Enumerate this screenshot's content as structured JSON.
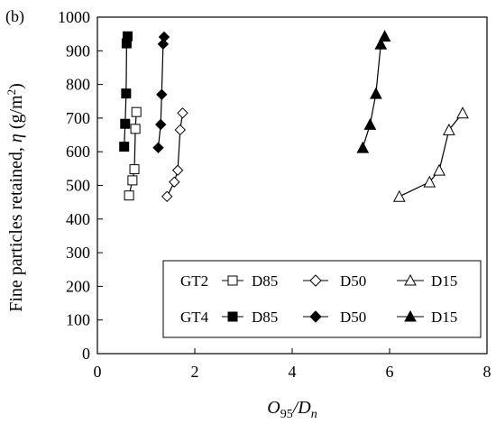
{
  "chart_data": {
    "type": "scatter",
    "panel_label": "(b)",
    "xlabel": {
      "base": "O",
      "sub": "95",
      "sep": "/D",
      "sub2": "n"
    },
    "ylabel": {
      "prefix": "Fine particles retained, ",
      "symbol": "η",
      "unit_open": " (g/m",
      "sup": "2",
      "unit_close": ")"
    },
    "xlim": [
      0,
      8
    ],
    "ylim": [
      0,
      1000
    ],
    "xticks": [
      "0",
      "2",
      "4",
      "6",
      "8"
    ],
    "yticks": [
      "0",
      "100",
      "200",
      "300",
      "400",
      "500",
      "600",
      "700",
      "800",
      "900",
      "1000"
    ],
    "grid": false,
    "legend_placement": "lower-right",
    "legend": {
      "groups": [
        {
          "label": "GT2",
          "entries": [
            {
              "label": "D85",
              "marker": "square-open"
            },
            {
              "label": "D50",
              "marker": "diamond-open"
            },
            {
              "label": "D15",
              "marker": "triangle-open"
            }
          ]
        },
        {
          "label": "GT4",
          "entries": [
            {
              "label": "D85",
              "marker": "square-filled"
            },
            {
              "label": "D50",
              "marker": "diamond-filled"
            },
            {
              "label": "D15",
              "marker": "triangle-filled"
            }
          ]
        }
      ]
    },
    "series": [
      {
        "group": "GT2",
        "name": "D85",
        "marker": "square-open",
        "color": "#000000",
        "points": [
          [
            0.65,
            470
          ],
          [
            0.72,
            515
          ],
          [
            0.76,
            548
          ],
          [
            0.78,
            668
          ],
          [
            0.8,
            718
          ]
        ]
      },
      {
        "group": "GT2",
        "name": "D50",
        "marker": "diamond-open",
        "color": "#000000",
        "points": [
          [
            1.43,
            467
          ],
          [
            1.58,
            510
          ],
          [
            1.65,
            545
          ],
          [
            1.7,
            665
          ],
          [
            1.75,
            715
          ]
        ]
      },
      {
        "group": "GT2",
        "name": "D15",
        "marker": "triangle-open",
        "color": "#000000",
        "points": [
          [
            6.2,
            467
          ],
          [
            6.82,
            510
          ],
          [
            7.02,
            545
          ],
          [
            7.22,
            665
          ],
          [
            7.5,
            715
          ]
        ]
      },
      {
        "group": "GT4",
        "name": "D85",
        "marker": "square-filled",
        "color": "#000000",
        "points": [
          [
            0.55,
            615
          ],
          [
            0.57,
            683
          ],
          [
            0.59,
            773
          ],
          [
            0.6,
            922
          ],
          [
            0.62,
            943
          ]
        ]
      },
      {
        "group": "GT4",
        "name": "D50",
        "marker": "diamond-filled",
        "color": "#000000",
        "points": [
          [
            1.25,
            612
          ],
          [
            1.3,
            681
          ],
          [
            1.32,
            770
          ],
          [
            1.35,
            920
          ],
          [
            1.37,
            941
          ]
        ]
      },
      {
        "group": "GT4",
        "name": "D15",
        "marker": "triangle-filled",
        "color": "#000000",
        "points": [
          [
            5.45,
            612
          ],
          [
            5.6,
            681
          ],
          [
            5.72,
            773
          ],
          [
            5.82,
            920
          ],
          [
            5.9,
            943
          ]
        ]
      }
    ]
  }
}
